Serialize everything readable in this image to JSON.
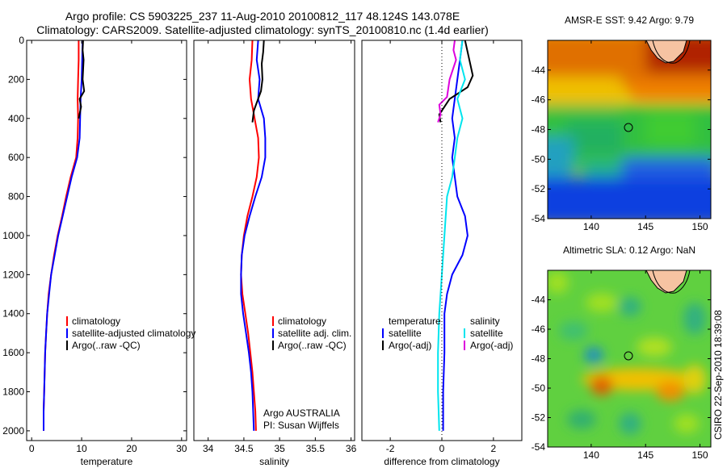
{
  "header": {
    "line1": "Argo profile: CS 5903225_237 11-Aug-2010 20100812_117 48.124S 143.078E",
    "line2": "Climatology: CARS2009. Satellite-adjusted climatology: synTS_20100810.nc (1.4d earlier)"
  },
  "credits": {
    "line1": "Argo AUSTRALIA",
    "line2": "PI: Susan Wijffels",
    "stamp": "CSIRO 22-Sep-2010 18:39:08"
  },
  "colors": {
    "climatology": "#ff0000",
    "satellite": "#0000ff",
    "argo": "#000000",
    "temp_satellite": "#00e5ee",
    "sal_argo": "#dd00dd"
  },
  "chart_data": [
    {
      "type": "line",
      "id": "temperature",
      "xlabel": "temperature",
      "ylabel": "",
      "xlim": [
        -1,
        31
      ],
      "ylim": [
        2050,
        0
      ],
      "y_reversed": true,
      "xticks": [
        0,
        10,
        20,
        30
      ],
      "yticks": [
        0,
        200,
        400,
        600,
        800,
        1000,
        1200,
        1400,
        1600,
        1800,
        2000
      ],
      "legend": [
        "climatology",
        "satellite-adjusted climatology",
        "Argo(..raw -QC)"
      ],
      "series": [
        {
          "name": "climatology",
          "color_key": "climatology",
          "points": [
            [
              9.4,
              0
            ],
            [
              9.4,
              100
            ],
            [
              9.3,
              200
            ],
            [
              9.2,
              300
            ],
            [
              9.3,
              400
            ],
            [
              9.2,
              500
            ],
            [
              8.9,
              600
            ],
            [
              7.8,
              700
            ],
            [
              6.9,
              800
            ],
            [
              6.1,
              900
            ],
            [
              5.2,
              1000
            ],
            [
              4.5,
              1100
            ],
            [
              3.9,
              1200
            ],
            [
              3.4,
              1300
            ],
            [
              3.1,
              1400
            ],
            [
              2.9,
              1500
            ],
            [
              2.7,
              1600
            ],
            [
              2.6,
              1700
            ],
            [
              2.5,
              1800
            ],
            [
              2.4,
              1900
            ],
            [
              2.4,
              2000
            ]
          ]
        },
        {
          "name": "satellite-adjusted climatology",
          "color_key": "satellite",
          "points": [
            [
              10.2,
              0
            ],
            [
              10.1,
              100
            ],
            [
              10.0,
              200
            ],
            [
              9.8,
              300
            ],
            [
              9.7,
              400
            ],
            [
              9.6,
              500
            ],
            [
              9.1,
              600
            ],
            [
              8.0,
              700
            ],
            [
              7.1,
              800
            ],
            [
              6.2,
              900
            ],
            [
              5.3,
              1000
            ],
            [
              4.6,
              1100
            ],
            [
              3.9,
              1200
            ],
            [
              3.5,
              1300
            ],
            [
              3.1,
              1400
            ],
            [
              2.9,
              1500
            ],
            [
              2.7,
              1600
            ],
            [
              2.6,
              1700
            ],
            [
              2.5,
              1800
            ],
            [
              2.4,
              1900
            ],
            [
              2.4,
              2000
            ]
          ]
        },
        {
          "name": "Argo(..raw -QC)",
          "color_key": "argo",
          "points": [
            [
              10.3,
              0
            ],
            [
              10.2,
              50
            ],
            [
              10.4,
              100
            ],
            [
              10.3,
              150
            ],
            [
              10.2,
              200
            ],
            [
              10.5,
              260
            ],
            [
              9.6,
              300
            ],
            [
              9.9,
              340
            ],
            [
              9.4,
              400
            ]
          ]
        }
      ]
    },
    {
      "type": "line",
      "id": "salinity",
      "xlabel": "salinity",
      "ylabel": "",
      "xlim": [
        33.8,
        36.05
      ],
      "ylim": [
        2050,
        0
      ],
      "y_reversed": true,
      "xticks": [
        34,
        34.5,
        35,
        35.5,
        36
      ],
      "xtick_labels": [
        "34",
        "34.5",
        "35",
        "35.5",
        "36"
      ],
      "legend": [
        "climatology",
        "satellite adj. clim.",
        "Argo(..raw -QC)"
      ],
      "series": [
        {
          "name": "climatology",
          "color_key": "climatology",
          "points": [
            [
              34.62,
              0
            ],
            [
              34.61,
              100
            ],
            [
              34.58,
              200
            ],
            [
              34.6,
              300
            ],
            [
              34.65,
              400
            ],
            [
              34.7,
              500
            ],
            [
              34.71,
              600
            ],
            [
              34.68,
              700
            ],
            [
              34.62,
              800
            ],
            [
              34.55,
              900
            ],
            [
              34.5,
              1000
            ],
            [
              34.47,
              1100
            ],
            [
              34.46,
              1200
            ],
            [
              34.48,
              1300
            ],
            [
              34.52,
              1400
            ],
            [
              34.56,
              1500
            ],
            [
              34.59,
              1600
            ],
            [
              34.62,
              1700
            ],
            [
              34.64,
              1800
            ],
            [
              34.66,
              1900
            ],
            [
              34.67,
              2000
            ]
          ]
        },
        {
          "name": "satellite adj. clim.",
          "color_key": "satellite",
          "points": [
            [
              34.7,
              0
            ],
            [
              34.68,
              100
            ],
            [
              34.72,
              200
            ],
            [
              34.7,
              300
            ],
            [
              34.78,
              400
            ],
            [
              34.8,
              500
            ],
            [
              34.8,
              600
            ],
            [
              34.75,
              700
            ],
            [
              34.66,
              800
            ],
            [
              34.58,
              900
            ],
            [
              34.51,
              1000
            ],
            [
              34.47,
              1100
            ],
            [
              34.46,
              1200
            ],
            [
              34.46,
              1300
            ],
            [
              34.49,
              1400
            ],
            [
              34.53,
              1500
            ],
            [
              34.57,
              1600
            ],
            [
              34.6,
              1700
            ],
            [
              34.62,
              1800
            ],
            [
              34.63,
              1900
            ],
            [
              34.64,
              2000
            ]
          ]
        },
        {
          "name": "Argo(..raw -QC)",
          "color_key": "argo",
          "points": [
            [
              34.78,
              0
            ],
            [
              34.77,
              60
            ],
            [
              34.75,
              120
            ],
            [
              34.76,
              200
            ],
            [
              34.74,
              260
            ],
            [
              34.68,
              320
            ],
            [
              34.64,
              360
            ],
            [
              34.62,
              420
            ]
          ]
        }
      ]
    },
    {
      "type": "line",
      "id": "difference",
      "xlabel": "difference from climatology",
      "ylabel": "",
      "xlim": [
        -3.1,
        3.1
      ],
      "ylim": [
        2050,
        0
      ],
      "y_reversed": true,
      "xticks": [
        -2,
        0,
        2
      ],
      "zero_line": true,
      "legend_headers": [
        "temperature",
        "salinity"
      ],
      "legend_temperature": [
        "satellite",
        "Argo(-adj)"
      ],
      "legend_salinity": [
        "satellite",
        "Argo(-adj)"
      ],
      "series": [
        {
          "name": "temperature satellite",
          "color_key": "satellite",
          "points": [
            [
              0.8,
              0
            ],
            [
              0.7,
              100
            ],
            [
              0.6,
              200
            ],
            [
              0.5,
              300
            ],
            [
              0.4,
              400
            ],
            [
              0.5,
              500
            ],
            [
              0.4,
              600
            ],
            [
              0.5,
              700
            ],
            [
              0.6,
              800
            ],
            [
              0.9,
              900
            ],
            [
              1.0,
              1000
            ],
            [
              0.8,
              1100
            ],
            [
              0.4,
              1200
            ],
            [
              0.2,
              1300
            ],
            [
              0.1,
              1400
            ],
            [
              0.1,
              1600
            ],
            [
              0.05,
              1800
            ],
            [
              0.05,
              2000
            ]
          ]
        },
        {
          "name": "temperature Argo(-adj)",
          "color_key": "argo",
          "points": [
            [
              0.9,
              0
            ],
            [
              1.0,
              60
            ],
            [
              1.1,
              120
            ],
            [
              1.2,
              180
            ],
            [
              1.0,
              240
            ],
            [
              0.3,
              300
            ],
            [
              0.1,
              340
            ],
            [
              -0.1,
              380
            ],
            [
              -0.05,
              420
            ]
          ]
        },
        {
          "name": "salinity satellite",
          "color_key": "temp_satellite",
          "points": [
            [
              0.8,
              0
            ],
            [
              0.7,
              100
            ],
            [
              0.9,
              200
            ],
            [
              0.6,
              300
            ],
            [
              0.8,
              400
            ],
            [
              0.6,
              500
            ],
            [
              0.5,
              600
            ],
            [
              0.4,
              700
            ],
            [
              0.2,
              800
            ],
            [
              0.1,
              1000
            ],
            [
              0.0,
              1200
            ],
            [
              -0.1,
              1400
            ],
            [
              -0.15,
              1600
            ],
            [
              -0.15,
              1800
            ],
            [
              -0.1,
              2000
            ]
          ]
        },
        {
          "name": "salinity Argo(-adj)",
          "color_key": "sal_argo",
          "points": [
            [
              0.5,
              0
            ],
            [
              0.45,
              50
            ],
            [
              0.55,
              100
            ],
            [
              0.3,
              200
            ],
            [
              0.2,
              290
            ],
            [
              -0.1,
              330
            ],
            [
              -0.05,
              380
            ],
            [
              -0.15,
              420
            ]
          ]
        }
      ]
    },
    {
      "type": "heatmap",
      "id": "sst_map",
      "title": "AMSR-E SST: 9.42  Argo: 9.79",
      "xlim": [
        136,
        151
      ],
      "ylim": [
        -54,
        -42
      ],
      "xticks": [
        140,
        145,
        150
      ],
      "yticks": [
        -44,
        -46,
        -48,
        -50,
        -52,
        -54
      ],
      "marker": [
        143.078,
        -48.124
      ]
    },
    {
      "type": "heatmap",
      "id": "sla_map",
      "title": "Altimetric SLA: 0.12  Argo: NaN",
      "xlim": [
        136,
        151
      ],
      "ylim": [
        -54,
        -42
      ],
      "xticks": [
        140,
        145,
        150
      ],
      "yticks": [
        -44,
        -46,
        -48,
        -50,
        -52,
        -54
      ],
      "marker": [
        143.078,
        -48.124
      ]
    }
  ]
}
